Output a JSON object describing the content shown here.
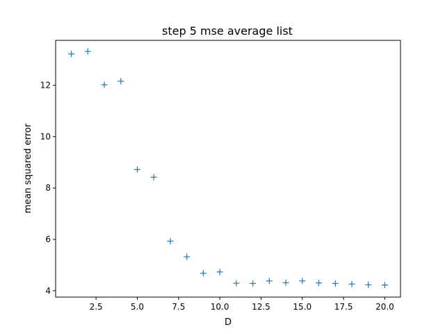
{
  "chart_data": {
    "type": "scatter",
    "title": "step 5 mse average list",
    "xlabel": "D",
    "ylabel": "mean squared error",
    "marker": "+",
    "color": "#1f77b4",
    "xlim": [
      0.05,
      20.95
    ],
    "ylim": [
      3.75,
      13.75
    ],
    "xticks": [
      2.5,
      5.0,
      7.5,
      10.0,
      12.5,
      15.0,
      17.5,
      20.0
    ],
    "xtick_labels": [
      "2.5",
      "5.0",
      "7.5",
      "10.0",
      "12.5",
      "15.0",
      "17.5",
      "20.0"
    ],
    "yticks": [
      4,
      6,
      8,
      10,
      12
    ],
    "ytick_labels": [
      "4",
      "6",
      "8",
      "10",
      "12"
    ],
    "grid": false,
    "points": [
      {
        "x": 1,
        "y": 13.22
      },
      {
        "x": 2,
        "y": 13.32
      },
      {
        "x": 3,
        "y": 12.02
      },
      {
        "x": 4,
        "y": 12.16
      },
      {
        "x": 5,
        "y": 8.72
      },
      {
        "x": 6,
        "y": 8.42
      },
      {
        "x": 7,
        "y": 5.93
      },
      {
        "x": 8,
        "y": 5.32
      },
      {
        "x": 9,
        "y": 4.68
      },
      {
        "x": 10,
        "y": 4.73
      },
      {
        "x": 11,
        "y": 4.29
      },
      {
        "x": 12,
        "y": 4.28
      },
      {
        "x": 13,
        "y": 4.38
      },
      {
        "x": 14,
        "y": 4.31
      },
      {
        "x": 15,
        "y": 4.38
      },
      {
        "x": 16,
        "y": 4.3
      },
      {
        "x": 17,
        "y": 4.28
      },
      {
        "x": 18,
        "y": 4.26
      },
      {
        "x": 19,
        "y": 4.23
      },
      {
        "x": 20,
        "y": 4.22
      }
    ]
  }
}
